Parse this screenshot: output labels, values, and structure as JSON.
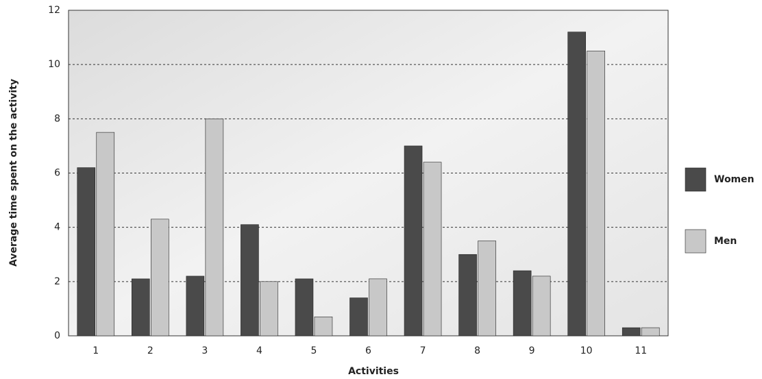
{
  "chart_data": {
    "type": "bar",
    "x_label": "Activities",
    "y_label": "Average time spent on the activity",
    "categories": [
      "1",
      "2",
      "3",
      "4",
      "5",
      "6",
      "7",
      "8",
      "9",
      "10",
      "11"
    ],
    "series": [
      {
        "name": "Women",
        "color": "#4a4a4a",
        "values": [
          6.2,
          2.1,
          2.2,
          4.1,
          2.1,
          1.4,
          7.0,
          3.0,
          2.4,
          11.2,
          0.3
        ]
      },
      {
        "name": "Men",
        "color": "#c8c8c8",
        "values": [
          7.5,
          4.3,
          8.0,
          2.0,
          0.7,
          2.1,
          6.4,
          3.5,
          2.2,
          10.5,
          0.3
        ]
      }
    ],
    "ylim": [
      0,
      12
    ],
    "yticks": [
      0,
      2,
      4,
      6,
      8,
      10,
      12
    ],
    "grid": true,
    "legend": "right"
  }
}
